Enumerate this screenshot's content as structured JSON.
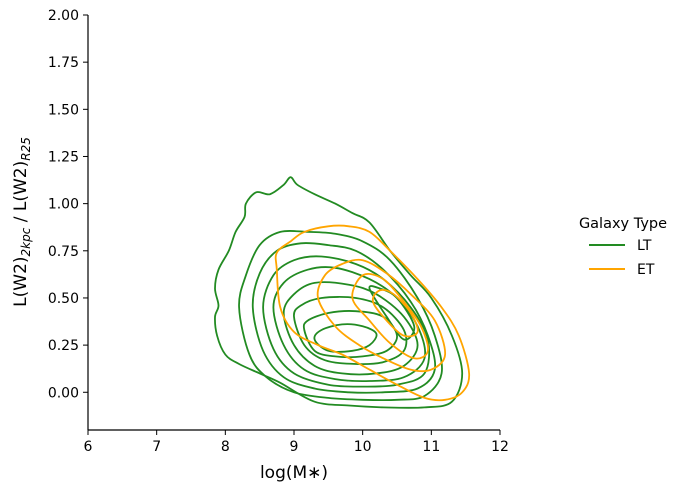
{
  "chart_data": {
    "type": "kde-contour",
    "title": "",
    "xlabel": "log(M∗)",
    "ylabel_main": "L(W2)",
    "ylabel_main_sub": "2kpc",
    "ylabel_sep": " / L(W2)",
    "ylabel_sep_sub": "R25",
    "xlim": [
      6,
      12
    ],
    "ylim": [
      -0.2,
      2.0
    ],
    "xticks": [
      6,
      7,
      8,
      9,
      10,
      11,
      12
    ],
    "xtick_labels": [
      "6",
      "7",
      "8",
      "9",
      "10",
      "11",
      "12"
    ],
    "yticks": [
      0.0,
      0.25,
      0.5,
      0.75,
      1.0,
      1.25,
      1.5,
      1.75,
      2.0
    ],
    "ytick_labels": [
      "0.00",
      "0.25",
      "0.50",
      "0.75",
      "1.00",
      "1.25",
      "1.50",
      "1.75",
      "2.00"
    ],
    "grid": false,
    "legend": {
      "title": "Galaxy Type",
      "placement": "outside-right",
      "entries": [
        {
          "label": "LT",
          "color": "#228b22"
        },
        {
          "label": "ET",
          "color": "#ffa500"
        }
      ]
    },
    "series": [
      {
        "name": "LT",
        "color": "#228b22",
        "contours": [
          [
            [
              7.85,
              0.4
            ],
            [
              7.88,
              0.3
            ],
            [
              8.0,
              0.2
            ],
            [
              8.2,
              0.15
            ],
            [
              8.5,
              0.1
            ],
            [
              8.8,
              0.05
            ],
            [
              9.3,
              -0.05
            ],
            [
              9.8,
              -0.07
            ],
            [
              10.3,
              -0.08
            ],
            [
              10.9,
              -0.08
            ],
            [
              11.3,
              -0.05
            ],
            [
              11.45,
              0.1
            ],
            [
              11.3,
              0.3
            ],
            [
              11.0,
              0.5
            ],
            [
              10.7,
              0.62
            ],
            [
              10.4,
              0.75
            ],
            [
              10.1,
              0.9
            ],
            [
              9.85,
              0.95
            ],
            [
              9.6,
              1.0
            ],
            [
              9.3,
              1.05
            ],
            [
              9.05,
              1.1
            ],
            [
              8.95,
              1.14
            ],
            [
              8.85,
              1.1
            ],
            [
              8.65,
              1.05
            ],
            [
              8.45,
              1.06
            ],
            [
              8.3,
              1.0
            ],
            [
              8.28,
              0.93
            ],
            [
              8.15,
              0.85
            ],
            [
              8.05,
              0.75
            ],
            [
              7.9,
              0.65
            ],
            [
              7.85,
              0.55
            ],
            [
              7.9,
              0.46
            ]
          ],
          [
            [
              8.2,
              0.45
            ],
            [
              8.35,
              0.2
            ],
            [
              8.6,
              0.08
            ],
            [
              9.0,
              0.0
            ],
            [
              9.5,
              -0.03
            ],
            [
              10.0,
              -0.04
            ],
            [
              10.5,
              -0.04
            ],
            [
              10.9,
              -0.02
            ],
            [
              11.15,
              0.1
            ],
            [
              11.05,
              0.3
            ],
            [
              10.8,
              0.5
            ],
            [
              10.4,
              0.7
            ],
            [
              10.0,
              0.8
            ],
            [
              9.6,
              0.84
            ],
            [
              9.2,
              0.85
            ],
            [
              8.8,
              0.85
            ],
            [
              8.5,
              0.78
            ],
            [
              8.3,
              0.62
            ]
          ],
          [
            [
              8.4,
              0.45
            ],
            [
              8.55,
              0.22
            ],
            [
              8.85,
              0.08
            ],
            [
              9.3,
              0.02
            ],
            [
              9.8,
              0.0
            ],
            [
              10.3,
              0.0
            ],
            [
              10.8,
              0.02
            ],
            [
              11.05,
              0.12
            ],
            [
              10.95,
              0.3
            ],
            [
              10.7,
              0.48
            ],
            [
              10.3,
              0.65
            ],
            [
              9.9,
              0.75
            ],
            [
              9.5,
              0.78
            ],
            [
              9.1,
              0.79
            ],
            [
              8.75,
              0.75
            ],
            [
              8.5,
              0.63
            ]
          ],
          [
            [
              8.55,
              0.45
            ],
            [
              8.7,
              0.23
            ],
            [
              9.0,
              0.1
            ],
            [
              9.5,
              0.04
            ],
            [
              10.0,
              0.03
            ],
            [
              10.5,
              0.04
            ],
            [
              10.9,
              0.1
            ],
            [
              10.95,
              0.28
            ],
            [
              10.7,
              0.45
            ],
            [
              10.3,
              0.6
            ],
            [
              9.9,
              0.68
            ],
            [
              9.4,
              0.72
            ],
            [
              9.0,
              0.7
            ],
            [
              8.7,
              0.62
            ]
          ],
          [
            [
              8.7,
              0.45
            ],
            [
              8.85,
              0.25
            ],
            [
              9.15,
              0.12
            ],
            [
              9.6,
              0.07
            ],
            [
              10.1,
              0.06
            ],
            [
              10.6,
              0.08
            ],
            [
              10.9,
              0.18
            ],
            [
              10.8,
              0.35
            ],
            [
              10.5,
              0.5
            ],
            [
              10.1,
              0.6
            ],
            [
              9.6,
              0.66
            ],
            [
              9.2,
              0.65
            ],
            [
              8.85,
              0.58
            ]
          ],
          [
            [
              8.85,
              0.42
            ],
            [
              9.0,
              0.25
            ],
            [
              9.3,
              0.14
            ],
            [
              9.7,
              0.1
            ],
            [
              10.2,
              0.1
            ],
            [
              10.6,
              0.14
            ],
            [
              10.8,
              0.25
            ],
            [
              10.6,
              0.4
            ],
            [
              10.2,
              0.52
            ],
            [
              9.8,
              0.57
            ],
            [
              9.3,
              0.58
            ],
            [
              9.0,
              0.52
            ]
          ],
          [
            [
              9.0,
              0.4
            ],
            [
              9.15,
              0.25
            ],
            [
              9.45,
              0.17
            ],
            [
              9.9,
              0.15
            ],
            [
              10.3,
              0.16
            ],
            [
              10.6,
              0.22
            ],
            [
              10.6,
              0.33
            ],
            [
              10.3,
              0.45
            ],
            [
              9.9,
              0.5
            ],
            [
              9.4,
              0.5
            ],
            [
              9.1,
              0.46
            ]
          ],
          [
            [
              9.15,
              0.33
            ],
            [
              9.3,
              0.22
            ],
            [
              9.6,
              0.19
            ],
            [
              10.0,
              0.19
            ],
            [
              10.35,
              0.22
            ],
            [
              10.5,
              0.3
            ],
            [
              10.3,
              0.4
            ],
            [
              9.9,
              0.43
            ],
            [
              9.5,
              0.42
            ],
            [
              9.2,
              0.38
            ]
          ],
          [
            [
              9.3,
              0.28
            ],
            [
              9.5,
              0.22
            ],
            [
              9.85,
              0.22
            ],
            [
              10.1,
              0.25
            ],
            [
              10.2,
              0.31
            ],
            [
              10.0,
              0.35
            ],
            [
              9.7,
              0.36
            ],
            [
              9.4,
              0.33
            ]
          ],
          [
            [
              10.1,
              0.55
            ],
            [
              10.35,
              0.4
            ],
            [
              10.6,
              0.28
            ],
            [
              10.75,
              0.35
            ],
            [
              10.5,
              0.5
            ],
            [
              10.25,
              0.55
            ]
          ]
        ]
      },
      {
        "name": "ET",
        "color": "#ffa500",
        "contours": [
          [
            [
              8.75,
              0.65
            ],
            [
              8.8,
              0.45
            ],
            [
              9.0,
              0.32
            ],
            [
              9.35,
              0.25
            ],
            [
              9.7,
              0.2
            ],
            [
              10.1,
              0.12
            ],
            [
              10.5,
              0.04
            ],
            [
              10.9,
              -0.03
            ],
            [
              11.2,
              -0.04
            ],
            [
              11.45,
              0.0
            ],
            [
              11.55,
              0.1
            ],
            [
              11.4,
              0.3
            ],
            [
              11.15,
              0.45
            ],
            [
              10.8,
              0.6
            ],
            [
              10.4,
              0.75
            ],
            [
              10.1,
              0.85
            ],
            [
              9.8,
              0.88
            ],
            [
              9.5,
              0.88
            ],
            [
              9.15,
              0.85
            ],
            [
              8.95,
              0.8
            ],
            [
              8.75,
              0.74
            ]
          ],
          [
            [
              9.35,
              0.5
            ],
            [
              9.6,
              0.35
            ],
            [
              9.95,
              0.25
            ],
            [
              10.3,
              0.18
            ],
            [
              10.7,
              0.12
            ],
            [
              11.0,
              0.12
            ],
            [
              11.2,
              0.2
            ],
            [
              11.05,
              0.38
            ],
            [
              10.7,
              0.52
            ],
            [
              10.35,
              0.63
            ],
            [
              10.0,
              0.7
            ],
            [
              9.7,
              0.68
            ],
            [
              9.45,
              0.62
            ]
          ],
          [
            [
              9.85,
              0.5
            ],
            [
              10.1,
              0.38
            ],
            [
              10.4,
              0.26
            ],
            [
              10.75,
              0.18
            ],
            [
              10.95,
              0.22
            ],
            [
              10.85,
              0.35
            ],
            [
              10.6,
              0.48
            ],
            [
              10.3,
              0.6
            ],
            [
              10.0,
              0.62
            ]
          ],
          [
            [
              10.15,
              0.48
            ],
            [
              10.35,
              0.38
            ],
            [
              10.6,
              0.3
            ],
            [
              10.8,
              0.32
            ],
            [
              10.7,
              0.42
            ],
            [
              10.45,
              0.52
            ],
            [
              10.25,
              0.54
            ]
          ]
        ]
      }
    ]
  }
}
